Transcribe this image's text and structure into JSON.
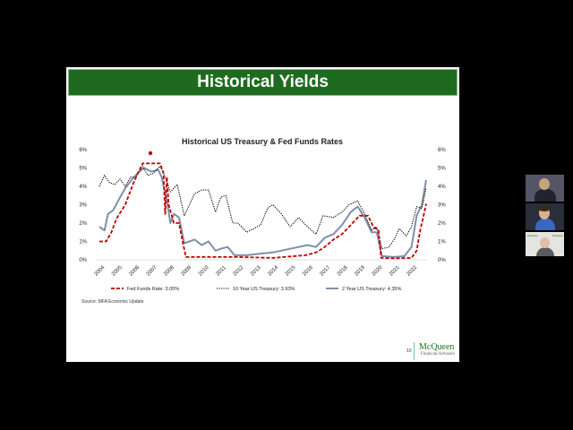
{
  "slide": {
    "title": "Historical Yields",
    "page_number": "10",
    "source": "Source: MFA Economic Update",
    "logo": {
      "name": "McQueen",
      "subtitle": "Financial Advisors"
    }
  },
  "participants": [
    {
      "name": "participant-1"
    },
    {
      "name": "participant-2"
    },
    {
      "name": "participant-3"
    }
  ],
  "colors": {
    "banner": "#1e6b1f",
    "fed": "#c00000",
    "ten_year": "#000000",
    "two_year": "#7f8fa6"
  },
  "chart_data": {
    "type": "line",
    "title": "Historical US Treasury & Fed Funds Rates",
    "ylim": [
      0,
      6
    ],
    "yticks": [
      "0%",
      "1%",
      "2%",
      "3%",
      "4%",
      "5%",
      "6%"
    ],
    "xlim": [
      2003.8,
      2022.9
    ],
    "xticks": [
      "2004",
      "2005",
      "2006",
      "2007",
      "2008",
      "2009",
      "2010",
      "2011",
      "2012",
      "2013",
      "2014",
      "2015",
      "2016",
      "2017",
      "2018",
      "2019",
      "2020",
      "2021",
      "2022"
    ],
    "series": [
      {
        "name": "Fed Funds Rate: 3.05%",
        "style": "dashed",
        "points": [
          [
            2004.0,
            1.0
          ],
          [
            2004.4,
            1.0
          ],
          [
            2004.7,
            1.5
          ],
          [
            2005.0,
            2.25
          ],
          [
            2005.5,
            3.0
          ],
          [
            2006.0,
            4.25
          ],
          [
            2006.5,
            5.25
          ],
          [
            2007.0,
            5.25
          ],
          [
            2007.5,
            5.25
          ],
          [
            2007.7,
            4.75
          ],
          [
            2007.8,
            2.5
          ],
          [
            2007.9,
            4.5
          ],
          [
            2008.0,
            3.0
          ],
          [
            2008.3,
            2.0
          ],
          [
            2008.6,
            2.0
          ],
          [
            2008.8,
            1.0
          ],
          [
            2009.0,
            0.15
          ],
          [
            2010.0,
            0.15
          ],
          [
            2012.0,
            0.15
          ],
          [
            2014.0,
            0.1
          ],
          [
            2015.9,
            0.25
          ],
          [
            2016.5,
            0.4
          ],
          [
            2017.0,
            0.7
          ],
          [
            2017.5,
            1.1
          ],
          [
            2018.0,
            1.4
          ],
          [
            2018.5,
            1.9
          ],
          [
            2019.0,
            2.4
          ],
          [
            2019.5,
            2.4
          ],
          [
            2019.8,
            1.8
          ],
          [
            2020.1,
            1.6
          ],
          [
            2020.25,
            0.1
          ],
          [
            2021.0,
            0.08
          ],
          [
            2022.0,
            0.1
          ],
          [
            2022.3,
            0.5
          ],
          [
            2022.5,
            1.6
          ],
          [
            2022.7,
            2.4
          ],
          [
            2022.85,
            3.05
          ]
        ]
      },
      {
        "name": "10 Year US Treasury: 3.93%",
        "style": "dotted",
        "points": [
          [
            2004.0,
            4.0
          ],
          [
            2004.3,
            4.6
          ],
          [
            2004.6,
            4.2
          ],
          [
            2004.9,
            4.1
          ],
          [
            2005.2,
            4.4
          ],
          [
            2005.5,
            4.0
          ],
          [
            2005.8,
            4.5
          ],
          [
            2006.1,
            4.5
          ],
          [
            2006.5,
            5.1
          ],
          [
            2006.8,
            4.6
          ],
          [
            2007.1,
            4.7
          ],
          [
            2007.5,
            5.1
          ],
          [
            2007.8,
            4.5
          ],
          [
            2008.1,
            3.7
          ],
          [
            2008.5,
            4.1
          ],
          [
            2008.9,
            2.4
          ],
          [
            2009.1,
            2.8
          ],
          [
            2009.5,
            3.6
          ],
          [
            2009.9,
            3.8
          ],
          [
            2010.3,
            3.8
          ],
          [
            2010.7,
            2.6
          ],
          [
            2011.0,
            3.4
          ],
          [
            2011.3,
            3.5
          ],
          [
            2011.7,
            2.0
          ],
          [
            2012.0,
            2.0
          ],
          [
            2012.5,
            1.5
          ],
          [
            2012.9,
            1.7
          ],
          [
            2013.3,
            1.9
          ],
          [
            2013.7,
            2.8
          ],
          [
            2014.0,
            3.0
          ],
          [
            2014.5,
            2.5
          ],
          [
            2015.0,
            1.8
          ],
          [
            2015.5,
            2.3
          ],
          [
            2016.0,
            1.8
          ],
          [
            2016.5,
            1.4
          ],
          [
            2016.9,
            2.4
          ],
          [
            2017.5,
            2.3
          ],
          [
            2018.0,
            2.6
          ],
          [
            2018.4,
            3.0
          ],
          [
            2018.9,
            3.2
          ],
          [
            2019.3,
            2.5
          ],
          [
            2019.7,
            1.6
          ],
          [
            2020.0,
            1.8
          ],
          [
            2020.3,
            0.6
          ],
          [
            2020.7,
            0.7
          ],
          [
            2021.0,
            1.1
          ],
          [
            2021.3,
            1.7
          ],
          [
            2021.7,
            1.3
          ],
          [
            2022.0,
            1.8
          ],
          [
            2022.3,
            2.9
          ],
          [
            2022.6,
            2.8
          ],
          [
            2022.85,
            3.93
          ]
        ]
      },
      {
        "name": "2 Year US Treasury: 4.35%",
        "style": "solid",
        "points": [
          [
            2004.0,
            1.8
          ],
          [
            2004.3,
            1.6
          ],
          [
            2004.5,
            2.5
          ],
          [
            2004.8,
            2.7
          ],
          [
            2005.2,
            3.4
          ],
          [
            2005.5,
            3.9
          ],
          [
            2005.9,
            4.4
          ],
          [
            2006.3,
            4.8
          ],
          [
            2006.6,
            5.0
          ],
          [
            2007.0,
            4.8
          ],
          [
            2007.4,
            4.9
          ],
          [
            2007.6,
            4.5
          ],
          [
            2007.9,
            3.2
          ],
          [
            2008.1,
            2.0
          ],
          [
            2008.3,
            2.5
          ],
          [
            2008.6,
            2.3
          ],
          [
            2008.9,
            0.9
          ],
          [
            2009.2,
            1.0
          ],
          [
            2009.5,
            1.1
          ],
          [
            2009.9,
            0.8
          ],
          [
            2010.3,
            1.0
          ],
          [
            2010.7,
            0.5
          ],
          [
            2011.0,
            0.6
          ],
          [
            2011.4,
            0.7
          ],
          [
            2011.8,
            0.25
          ],
          [
            2012.5,
            0.25
          ],
          [
            2013.0,
            0.3
          ],
          [
            2013.5,
            0.35
          ],
          [
            2014.0,
            0.4
          ],
          [
            2014.5,
            0.5
          ],
          [
            2015.0,
            0.6
          ],
          [
            2015.5,
            0.7
          ],
          [
            2016.0,
            0.8
          ],
          [
            2016.5,
            0.7
          ],
          [
            2017.0,
            1.2
          ],
          [
            2017.5,
            1.4
          ],
          [
            2018.0,
            1.9
          ],
          [
            2018.5,
            2.6
          ],
          [
            2018.9,
            2.9
          ],
          [
            2019.3,
            2.3
          ],
          [
            2019.7,
            1.5
          ],
          [
            2020.0,
            1.5
          ],
          [
            2020.3,
            0.2
          ],
          [
            2021.0,
            0.15
          ],
          [
            2021.6,
            0.2
          ],
          [
            2022.0,
            0.7
          ],
          [
            2022.3,
            2.4
          ],
          [
            2022.6,
            3.0
          ],
          [
            2022.85,
            4.35
          ]
        ]
      }
    ]
  }
}
